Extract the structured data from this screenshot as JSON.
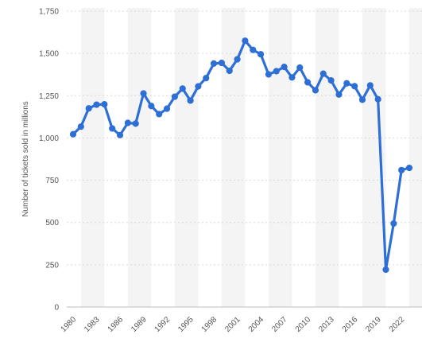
{
  "chart_data": {
    "type": "line",
    "ylabel": "Number of tickets sold in millions",
    "ylim": [
      0,
      1750
    ],
    "yticks": [
      0,
      250,
      500,
      750,
      1000,
      1250,
      1500,
      1750
    ],
    "ytick_labels": [
      "0",
      "250",
      "500",
      "750",
      "1,000",
      "1,250",
      "1,500",
      "1,750"
    ],
    "xticks": [
      1980,
      1983,
      1986,
      1989,
      1992,
      1995,
      1998,
      2001,
      2004,
      2007,
      2010,
      2013,
      2016,
      2019,
      2022
    ],
    "xtick_labels": [
      "1980",
      "1983",
      "1986",
      "1989",
      "1992",
      "1995",
      "1998",
      "2001",
      "2004",
      "2007",
      "2010",
      "2013",
      "2016",
      "2019",
      "2022"
    ],
    "x": [
      1980,
      1981,
      1982,
      1983,
      1984,
      1985,
      1986,
      1987,
      1988,
      1989,
      1990,
      1991,
      1992,
      1993,
      1994,
      1995,
      1996,
      1997,
      1998,
      1999,
      2000,
      2001,
      2002,
      2003,
      2004,
      2005,
      2006,
      2007,
      2008,
      2009,
      2010,
      2011,
      2012,
      2013,
      2014,
      2015,
      2016,
      2017,
      2018,
      2019,
      2020,
      2021,
      2022,
      2023
    ],
    "series": [
      {
        "values": [
          1022,
          1067,
          1175,
          1197,
          1199,
          1056,
          1017,
          1089,
          1085,
          1263,
          1189,
          1141,
          1173,
          1244,
          1292,
          1221,
          1305,
          1354,
          1440,
          1444,
          1397,
          1465,
          1575,
          1521,
          1495,
          1376,
          1395,
          1420,
          1358,
          1416,
          1329,
          1282,
          1380,
          1340,
          1257,
          1323,
          1306,
          1226,
          1311,
          1229,
          221,
          494,
          810,
          823
        ]
      }
    ],
    "line_color": "#2e6fd6",
    "band_color": "#f4f4f4",
    "grid": true
  }
}
